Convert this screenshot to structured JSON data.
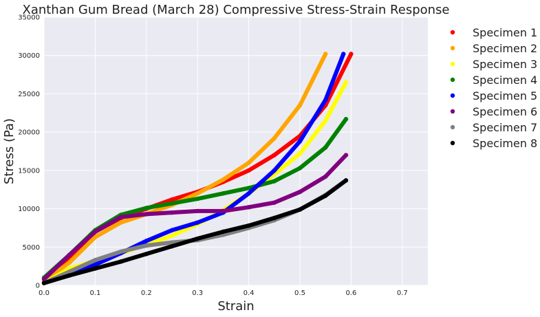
{
  "chart_data": {
    "type": "scatter",
    "title": "Xanthan Gum Bread (March 28) Compressive Stress-Strain Response",
    "xlabel": "Strain",
    "ylabel": "Stress (Pa)",
    "xlim": [
      0.0,
      0.75
    ],
    "ylim": [
      0,
      35000
    ],
    "xticks": [
      "0.0",
      "0.1",
      "0.2",
      "0.3",
      "0.4",
      "0.5",
      "0.6",
      "0.7"
    ],
    "yticks": [
      "0",
      "5000",
      "10000",
      "15000",
      "20000",
      "25000",
      "30000",
      "35000"
    ],
    "grid": true,
    "legend_position": "outside-right",
    "background": "#eaeaf2",
    "series": [
      {
        "name": "Specimen 1",
        "color": "#ff0000",
        "x": [
          0.0,
          0.05,
          0.1,
          0.15,
          0.2,
          0.25,
          0.3,
          0.35,
          0.4,
          0.45,
          0.5,
          0.55,
          0.6
        ],
        "y": [
          500,
          3500,
          7000,
          8800,
          10000,
          11200,
          12200,
          13500,
          15000,
          17000,
          19500,
          23500,
          30200
        ]
      },
      {
        "name": "Specimen 2",
        "color": "#ffa500",
        "x": [
          0.0,
          0.05,
          0.1,
          0.15,
          0.2,
          0.25,
          0.3,
          0.35,
          0.4,
          0.45,
          0.5,
          0.55
        ],
        "y": [
          500,
          3000,
          6300,
          8200,
          9300,
          10500,
          12000,
          13800,
          16000,
          19200,
          23500,
          30200
        ]
      },
      {
        "name": "Specimen 3",
        "color": "#ffff00",
        "x": [
          0.0,
          0.05,
          0.1,
          0.15,
          0.2,
          0.25,
          0.3,
          0.35,
          0.4,
          0.45,
          0.5,
          0.55,
          0.59
        ],
        "y": [
          300,
          2200,
          3200,
          4200,
          5300,
          6500,
          8000,
          9800,
          12000,
          14500,
          17200,
          21500,
          26500
        ]
      },
      {
        "name": "Specimen 4",
        "color": "#008000",
        "x": [
          0.0,
          0.05,
          0.1,
          0.15,
          0.2,
          0.25,
          0.3,
          0.35,
          0.4,
          0.45,
          0.5,
          0.55,
          0.59
        ],
        "y": [
          1000,
          4000,
          7200,
          9200,
          10100,
          10700,
          11300,
          12000,
          12700,
          13600,
          15300,
          18000,
          21700
        ]
      },
      {
        "name": "Specimen 5",
        "color": "#0000ff",
        "x": [
          0.0,
          0.05,
          0.1,
          0.15,
          0.2,
          0.25,
          0.3,
          0.35,
          0.4,
          0.45,
          0.5,
          0.55,
          0.585
        ],
        "y": [
          300,
          1500,
          2700,
          4200,
          5800,
          7200,
          8200,
          9500,
          12000,
          15000,
          18800,
          24200,
          30200
        ]
      },
      {
        "name": "Specimen 6",
        "color": "#800080",
        "x": [
          0.0,
          0.05,
          0.1,
          0.15,
          0.2,
          0.25,
          0.3,
          0.35,
          0.4,
          0.45,
          0.5,
          0.55,
          0.59
        ],
        "y": [
          800,
          4000,
          7000,
          8900,
          9300,
          9500,
          9700,
          9700,
          10200,
          10800,
          12200,
          14200,
          17000
        ]
      },
      {
        "name": "Specimen 7",
        "color": "#808080",
        "x": [
          0.0,
          0.05,
          0.1,
          0.15,
          0.2,
          0.25,
          0.3,
          0.35,
          0.4,
          0.45,
          0.5,
          0.55,
          0.59
        ],
        "y": [
          300,
          1800,
          3300,
          4400,
          5200,
          5600,
          5900,
          6600,
          7500,
          8500,
          9900,
          11800,
          13700
        ]
      },
      {
        "name": "Specimen 8",
        "color": "#000000",
        "x": [
          0.0,
          0.05,
          0.1,
          0.15,
          0.2,
          0.25,
          0.3,
          0.35,
          0.4,
          0.45,
          0.5,
          0.55,
          0.59
        ],
        "y": [
          300,
          1300,
          2200,
          3100,
          4100,
          5100,
          6100,
          7000,
          7800,
          8800,
          9900,
          11700,
          13700
        ]
      }
    ]
  }
}
